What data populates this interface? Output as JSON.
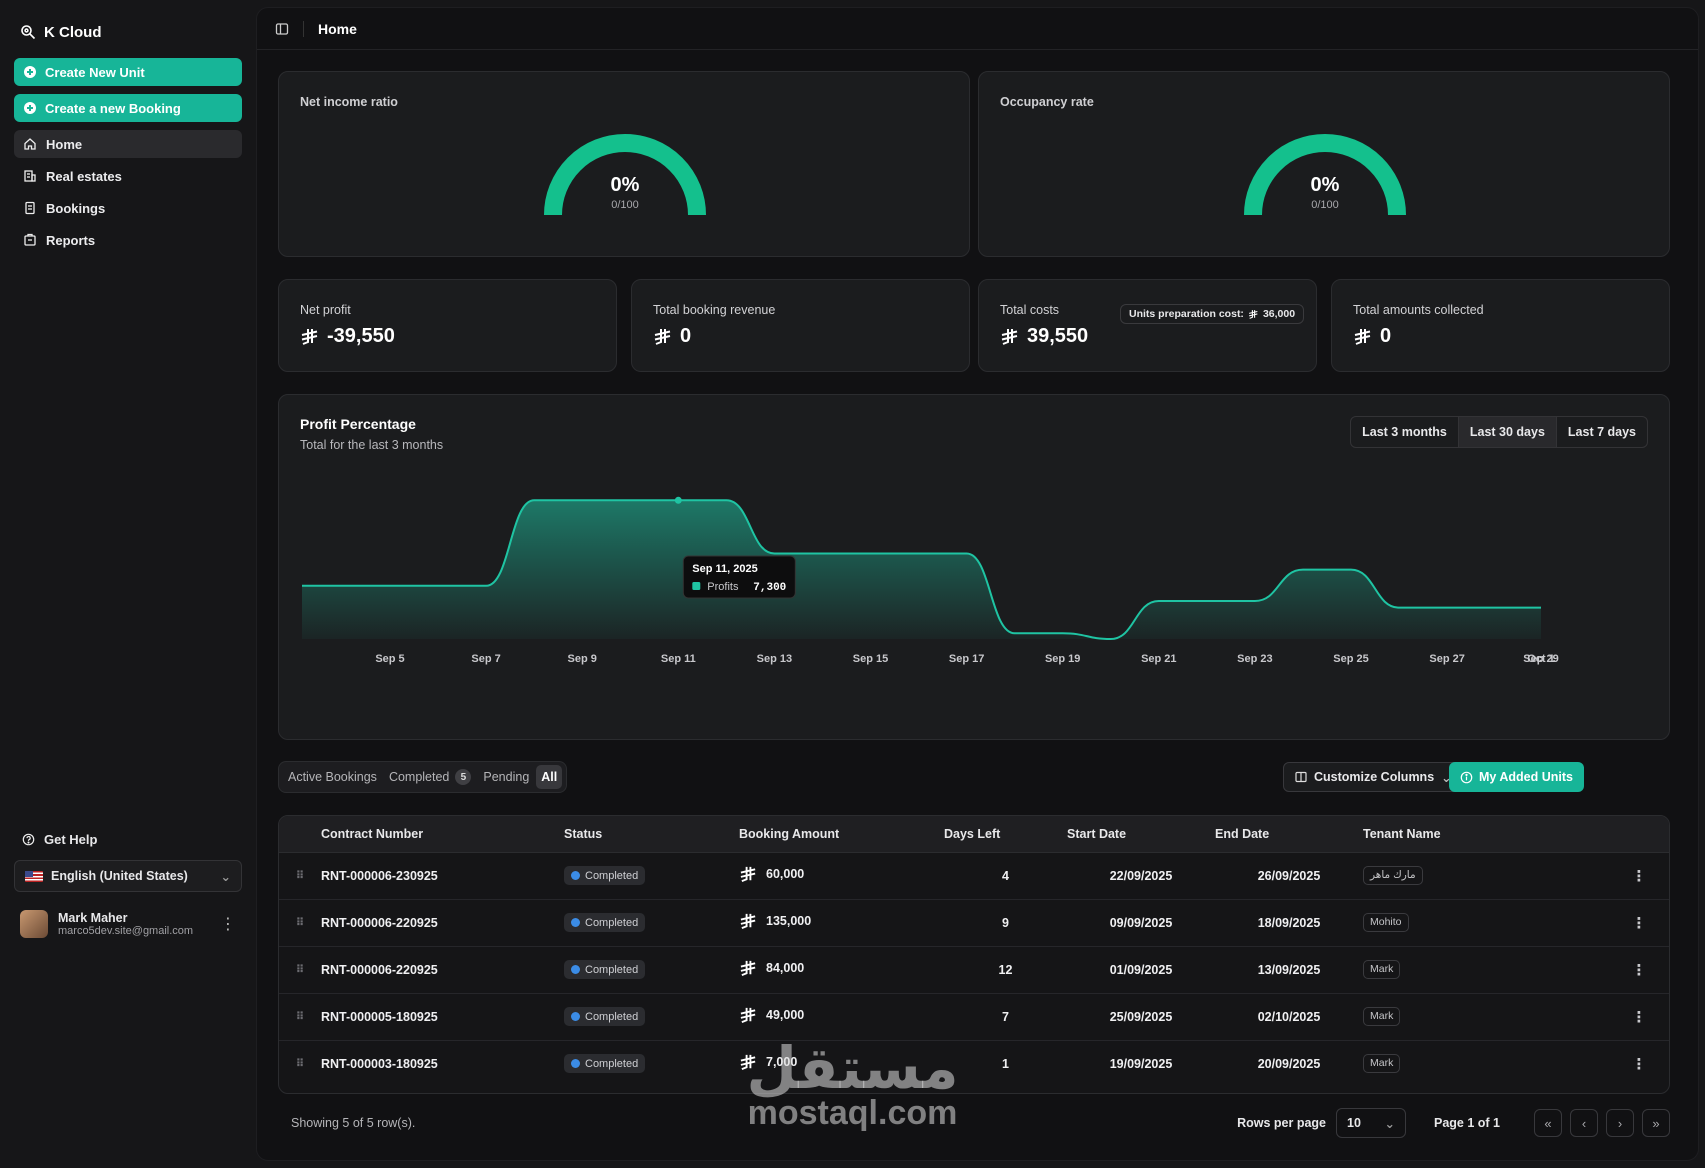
{
  "app": {
    "name": "K Cloud"
  },
  "sidebar": {
    "actions": [
      {
        "label": "Create New Unit"
      },
      {
        "label": "Create a new Booking"
      }
    ],
    "items": [
      {
        "label": "Home",
        "icon": "home-icon",
        "active": true
      },
      {
        "label": "Real estates",
        "icon": "building-icon"
      },
      {
        "label": "Bookings",
        "icon": "booking-icon"
      },
      {
        "label": "Reports",
        "icon": "reports-icon"
      }
    ],
    "help": "Get Help",
    "language": "English (United States)",
    "user": {
      "name": "Mark Maher",
      "email": "marco5dev.site@gmail.com"
    }
  },
  "header": {
    "title": "Home"
  },
  "gauges": [
    {
      "label": "Net income ratio",
      "value": "0%",
      "sub": "0/100"
    },
    {
      "label": "Occupancy rate",
      "value": "0%",
      "sub": "0/100"
    }
  ],
  "stats": [
    {
      "label": "Net profit",
      "value": "-39,550"
    },
    {
      "label": "Total booking revenue",
      "value": "0"
    },
    {
      "label": "Total costs",
      "value": "39,550",
      "badge_label": "Units preparation cost:",
      "badge_value": "36,000"
    },
    {
      "label": "Total amounts collected",
      "value": "0"
    }
  ],
  "chart_panel": {
    "title": "Profit Percentage",
    "subtitle": "Total for the last 3 months",
    "ranges": [
      "Last 3 months",
      "Last 30 days",
      "Last 7 days"
    ],
    "selected_range": "Last 30 days",
    "tooltip": {
      "date": "Sep 11, 2025",
      "series": "Profits",
      "value": "7,300"
    }
  },
  "chart_data": {
    "type": "area",
    "x_tick_labels": [
      "Sep 5",
      "Sep 7",
      "Sep 9",
      "Sep 11",
      "Sep 13",
      "Sep 15",
      "Sep 17",
      "Sep 19",
      "Sep 21",
      "Sep 23",
      "Sep 25",
      "Sep 27",
      "Sep 29",
      "Oct 1"
    ],
    "series": [
      {
        "name": "Profits",
        "color": "#1fc4a3",
        "points": [
          {
            "x": "Sep 3",
            "y": 2800
          },
          {
            "x": "Sep 7",
            "y": 2800
          },
          {
            "x": "Sep 8",
            "y": 7300
          },
          {
            "x": "Sep 12",
            "y": 7300
          },
          {
            "x": "Sep 13",
            "y": 4500
          },
          {
            "x": "Sep 17",
            "y": 4500
          },
          {
            "x": "Sep 18",
            "y": 300
          },
          {
            "x": "Sep 19",
            "y": 300
          },
          {
            "x": "Sep 20",
            "y": 0
          },
          {
            "x": "Sep 21",
            "y": 2000
          },
          {
            "x": "Sep 23",
            "y": 2000
          },
          {
            "x": "Sep 24",
            "y": 3650
          },
          {
            "x": "Sep 25",
            "y": 3650
          },
          {
            "x": "Sep 26",
            "y": 1650
          },
          {
            "x": "Oct 1",
            "y": 1650
          }
        ]
      }
    ],
    "ylim": [
      0,
      8000
    ],
    "grid": false
  },
  "bookings": {
    "tabs": [
      {
        "label": "Active Bookings"
      },
      {
        "label": "Completed",
        "count": "5"
      },
      {
        "label": "Pending"
      },
      {
        "label": "All",
        "selected": true
      }
    ],
    "customize_label": "Customize Columns",
    "my_units_label": "My Added Units",
    "columns": [
      "Contract Number",
      "Status",
      "Booking Amount",
      "Days Left",
      "Start Date",
      "End Date",
      "Tenant Name"
    ],
    "rows": [
      {
        "contract": "RNT-000006-230925",
        "status": "Completed",
        "amount": "60,000",
        "days": "4",
        "start": "22/09/2025",
        "end": "26/09/2025",
        "tenant": "مارك ماهر"
      },
      {
        "contract": "RNT-000006-220925",
        "status": "Completed",
        "amount": "135,000",
        "days": "9",
        "start": "09/09/2025",
        "end": "18/09/2025",
        "tenant": "Mohito"
      },
      {
        "contract": "RNT-000006-220925",
        "status": "Completed",
        "amount": "84,000",
        "days": "12",
        "start": "01/09/2025",
        "end": "13/09/2025",
        "tenant": "Mark"
      },
      {
        "contract": "RNT-000005-180925",
        "status": "Completed",
        "amount": "49,000",
        "days": "7",
        "start": "25/09/2025",
        "end": "02/10/2025",
        "tenant": "Mark"
      },
      {
        "contract": "RNT-000003-180925",
        "status": "Completed",
        "amount": "7,000",
        "days": "1",
        "start": "19/09/2025",
        "end": "20/09/2025",
        "tenant": "Mark"
      }
    ],
    "showing": "Showing 5 of 5 row(s).",
    "rows_per_page_label": "Rows per page",
    "rows_per_page": "10",
    "page_label": "Page 1 of 1"
  },
  "watermark": {
    "arabic": "مستقل",
    "latin": "mostaql.com"
  },
  "colors": {
    "accent": "#17b598",
    "chart": "#1fc4a3",
    "status_dot": "#3b8ce6"
  }
}
